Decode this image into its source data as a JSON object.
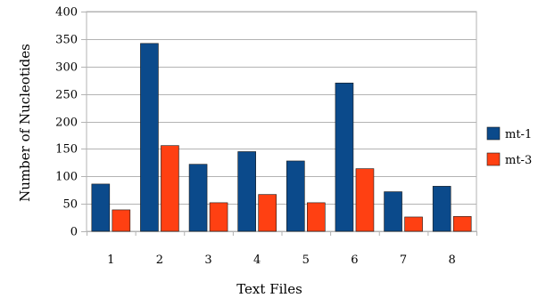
{
  "chart_data": {
    "type": "bar",
    "title": "",
    "xlabel": "Text Files",
    "ylabel": "Number of Nucleotides",
    "categories": [
      "1",
      "2",
      "3",
      "4",
      "5",
      "6",
      "7",
      "8"
    ],
    "ylim": [
      0,
      400
    ],
    "yticks": [
      "0",
      "50",
      "100",
      "150",
      "200",
      "250",
      "300",
      "350",
      "400"
    ],
    "grid": true,
    "legend_position": "right",
    "series": [
      {
        "name": "mt-1",
        "color": "#0b4a8b",
        "values": [
          86,
          342,
          122,
          145,
          128,
          270,
          72,
          82
        ]
      },
      {
        "name": "mt-3",
        "color": "#ff4012",
        "values": [
          39,
          156,
          52,
          67,
          52,
          114,
          26,
          27
        ]
      }
    ]
  }
}
